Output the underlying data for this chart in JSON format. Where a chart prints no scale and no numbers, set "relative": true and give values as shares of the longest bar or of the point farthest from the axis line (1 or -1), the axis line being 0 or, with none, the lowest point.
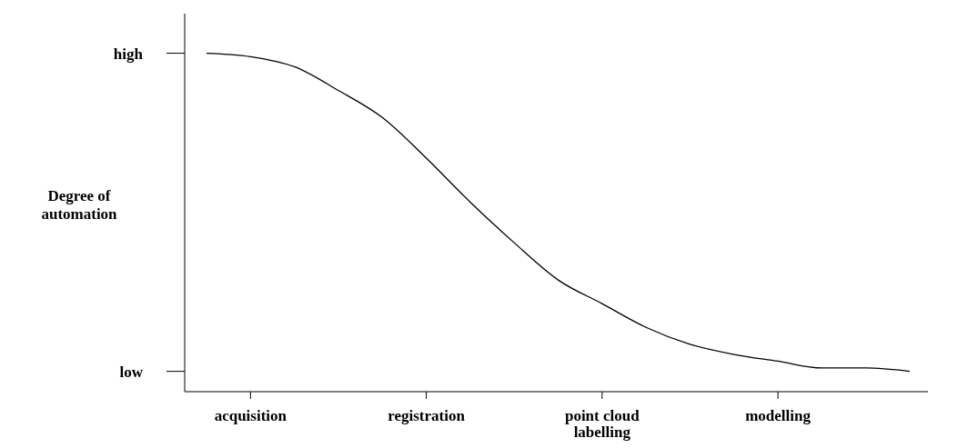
{
  "chart_data": {
    "type": "line",
    "ylabel": "Degree of automation",
    "relative": true,
    "categories": [
      null,
      "acquisition",
      null,
      null,
      null,
      "registration",
      null,
      null,
      null,
      "point cloud labelling",
      null,
      null,
      null,
      "modelling",
      null,
      null,
      null
    ],
    "series": [
      {
        "color": "#000000",
        "values": [
          1.0,
          0.99,
          0.96,
          0.89,
          0.81,
          0.69,
          0.56,
          0.44,
          0.33,
          0.26,
          0.19,
          0.14,
          0.11,
          0.09,
          0.07,
          0.07,
          0.06
        ]
      }
    ],
    "annotations": [
      "high",
      "low"
    ],
    "marker": "none",
    "line_style": "solid"
  }
}
